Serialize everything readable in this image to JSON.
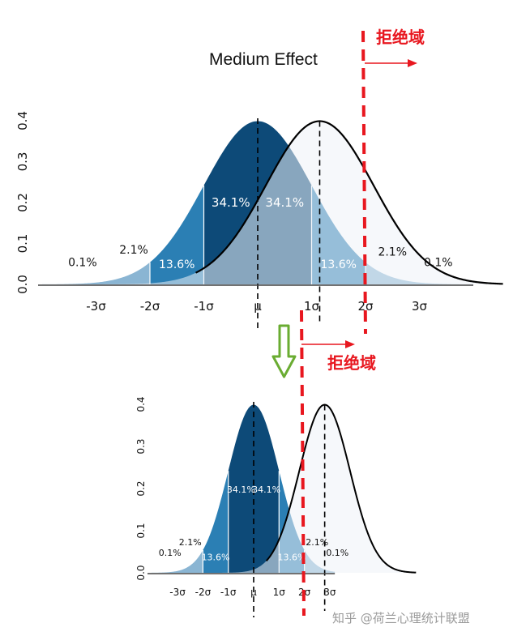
{
  "title": "Medium Effect",
  "rejection_label": "拒绝域",
  "watermark": "知乎 @荷兰心理统计联盟",
  "colors": {
    "band1": "#0d4a78",
    "band2": "#2b7fb4",
    "band3": "#8ab5d3",
    "band4": "#cfe0ec",
    "alt_fill": "#eff3f8",
    "red": "#e8171f",
    "green": "#6aac32"
  },
  "chart_data": [
    {
      "type": "area",
      "name": "top",
      "x_ticks": [
        "-3σ",
        "-2σ",
        "-1σ",
        "μ",
        "1σ",
        "2σ",
        "3σ"
      ],
      "x_tick_values": [
        -3,
        -2,
        -1,
        0,
        1,
        2,
        3
      ],
      "y_ticks": [
        "0.0",
        "0.1",
        "0.2",
        "0.3",
        "0.4"
      ],
      "y_tick_values": [
        0,
        0.1,
        0.2,
        0.3,
        0.4
      ],
      "ylim": [
        0,
        0.4
      ],
      "null_mean": 0,
      "alt_mean": 1.15,
      "critical_value": 2.0,
      "band_labels": [
        {
          "text": "0.1%",
          "x": -3.25,
          "y": 0.045,
          "style": "light",
          "size": 14
        },
        {
          "text": "2.1%",
          "x": -2.3,
          "y": 0.075,
          "style": "light",
          "size": 14
        },
        {
          "text": "13.6%",
          "x": -1.5,
          "y": 0.04,
          "style": "dark",
          "size": 14
        },
        {
          "text": "34.1%",
          "x": -0.5,
          "y": 0.19,
          "style": "dark",
          "size": 15
        },
        {
          "text": "34.1%",
          "x": 0.5,
          "y": 0.19,
          "style": "dark",
          "size": 15
        },
        {
          "text": "13.6%",
          "x": 1.5,
          "y": 0.04,
          "style": "dark",
          "size": 14
        },
        {
          "text": "2.1%",
          "x": 2.5,
          "y": 0.07,
          "style": "light",
          "size": 14
        },
        {
          "text": "0.1%",
          "x": 3.35,
          "y": 0.045,
          "style": "light",
          "size": 14
        }
      ]
    },
    {
      "type": "area",
      "name": "bottom",
      "x_ticks": [
        "-3σ",
        "-2σ",
        "-1σ",
        "μ",
        "1σ",
        "2σ",
        "3σ"
      ],
      "x_tick_values": [
        -3,
        -2,
        -1,
        0,
        1,
        2,
        3
      ],
      "y_ticks": [
        "0.0",
        "0.1",
        "0.2",
        "0.3",
        "0.4"
      ],
      "y_tick_values": [
        0,
        0.1,
        0.2,
        0.3,
        0.4
      ],
      "ylim": [
        0,
        0.4
      ],
      "null_mean": 0,
      "alt_mean": 2.8,
      "critical_value": 2.0,
      "band_labels": [
        {
          "text": "0.1%",
          "x": -3.3,
          "y": 0.04,
          "style": "light",
          "size": 11
        },
        {
          "text": "2.1%",
          "x": -2.5,
          "y": 0.065,
          "style": "light",
          "size": 11
        },
        {
          "text": "13.6%",
          "x": -1.5,
          "y": 0.03,
          "style": "dark",
          "size": 11
        },
        {
          "text": "34.1%",
          "x": -0.5,
          "y": 0.19,
          "style": "dark",
          "size": 11
        },
        {
          "text": "34.1%",
          "x": 0.5,
          "y": 0.19,
          "style": "dark",
          "size": 11
        },
        {
          "text": "13.6%",
          "x": 1.5,
          "y": 0.03,
          "style": "dark",
          "size": 11
        },
        {
          "text": "2.1%",
          "x": 2.5,
          "y": 0.065,
          "style": "light",
          "size": 11
        },
        {
          "text": "0.1%",
          "x": 3.3,
          "y": 0.04,
          "style": "light",
          "size": 11
        }
      ]
    }
  ]
}
